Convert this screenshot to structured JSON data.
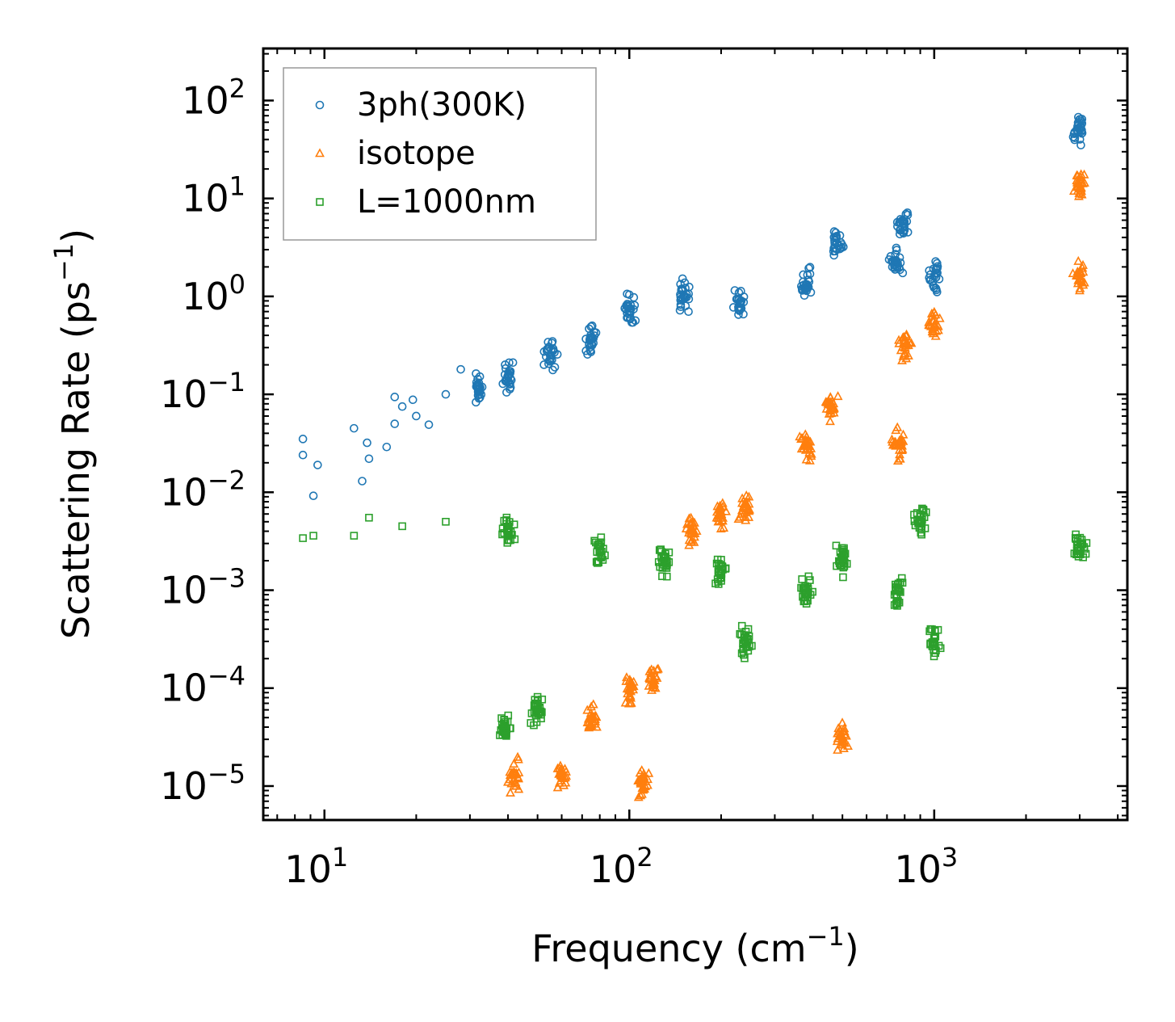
{
  "chart_data": {
    "type": "scatter",
    "title": "",
    "xlabel": "Frequency (cm",
    "xlabel_sup": "−1",
    "xlabel_close": ")",
    "ylabel": "Scattering Rate (ps",
    "ylabel_sup": "−1",
    "ylabel_close": ")",
    "xscale": "log",
    "yscale": "log",
    "xlim": [
      6.3,
      4300
    ],
    "ylim": [
      4.5e-06,
      340
    ],
    "legend_position": "top-left",
    "x_ticks": [
      {
        "value": 10,
        "base": "10",
        "exp": "1"
      },
      {
        "value": 100,
        "base": "10",
        "exp": "2"
      },
      {
        "value": 1000,
        "base": "10",
        "exp": "3"
      }
    ],
    "y_ticks": [
      {
        "value": 1e-05,
        "base": "10",
        "exp": "−5"
      },
      {
        "value": 0.0001,
        "base": "10",
        "exp": "−4"
      },
      {
        "value": 0.001,
        "base": "10",
        "exp": "−3"
      },
      {
        "value": 0.01,
        "base": "10",
        "exp": "−2"
      },
      {
        "value": 0.1,
        "base": "10",
        "exp": "−1"
      },
      {
        "value": 1,
        "base": "10",
        "exp": "0"
      },
      {
        "value": 10,
        "base": "10",
        "exp": "1"
      },
      {
        "value": 100,
        "base": "10",
        "exp": "2"
      }
    ],
    "series": [
      {
        "name": "3ph(300K)",
        "marker": "circle",
        "color": "#1f77b4",
        "clusters": [
          {
            "x": 8.5,
            "y": 0.035
          },
          {
            "x": 8.5,
            "y": 0.024
          },
          {
            "x": 9.2,
            "y": 0.0092
          },
          {
            "x": 9.5,
            "y": 0.019
          },
          {
            "x": 12.5,
            "y": 0.045
          },
          {
            "x": 13.3,
            "y": 0.013
          },
          {
            "x": 13.8,
            "y": 0.032
          },
          {
            "x": 14,
            "y": 0.022
          },
          {
            "x": 16,
            "y": 0.029
          },
          {
            "x": 17,
            "y": 0.094
          },
          {
            "x": 17,
            "y": 0.05
          },
          {
            "x": 18,
            "y": 0.075
          },
          {
            "x": 19.5,
            "y": 0.088
          },
          {
            "x": 20,
            "y": 0.06
          },
          {
            "x": 22,
            "y": 0.049
          },
          {
            "x": 25,
            "y": 0.1
          },
          {
            "x": 28,
            "y": 0.18
          },
          {
            "x": 32,
            "y": 0.12
          },
          {
            "x": 40,
            "y": 0.15
          },
          {
            "x": 55,
            "y": 0.25
          },
          {
            "x": 75,
            "y": 0.38
          },
          {
            "x": 100,
            "y": 0.7
          },
          {
            "x": 150,
            "y": 0.95
          },
          {
            "x": 230,
            "y": 0.85
          },
          {
            "x": 380,
            "y": 1.3
          },
          {
            "x": 480,
            "y": 3.5
          },
          {
            "x": 750,
            "y": 2.2
          },
          {
            "x": 790,
            "y": 5.5
          },
          {
            "x": 1000,
            "y": 1.6
          },
          {
            "x": 3000,
            "y": 50
          }
        ]
      },
      {
        "name": "isotope",
        "marker": "triangle",
        "color": "#ff7f0e",
        "clusters": [
          {
            "x": 42,
            "y": 1.3e-05
          },
          {
            "x": 60,
            "y": 1.3e-05
          },
          {
            "x": 75,
            "y": 5e-05
          },
          {
            "x": 100,
            "y": 0.0001
          },
          {
            "x": 110,
            "y": 1.1e-05
          },
          {
            "x": 120,
            "y": 0.00012
          },
          {
            "x": 160,
            "y": 0.004
          },
          {
            "x": 200,
            "y": 0.006
          },
          {
            "x": 240,
            "y": 0.007
          },
          {
            "x": 380,
            "y": 0.03
          },
          {
            "x": 460,
            "y": 0.08
          },
          {
            "x": 500,
            "y": 3e-05
          },
          {
            "x": 760,
            "y": 0.03
          },
          {
            "x": 800,
            "y": 0.3
          },
          {
            "x": 1000,
            "y": 0.5
          },
          {
            "x": 3000,
            "y": 1.5
          },
          {
            "x": 3000,
            "y": 14
          }
        ]
      },
      {
        "name": "L=1000nm",
        "marker": "square",
        "color": "#2ca02c",
        "clusters": [
          {
            "x": 8.5,
            "y": 0.0034
          },
          {
            "x": 9.2,
            "y": 0.0036
          },
          {
            "x": 12.5,
            "y": 0.0036
          },
          {
            "x": 14,
            "y": 0.0055
          },
          {
            "x": 18,
            "y": 0.0045
          },
          {
            "x": 25,
            "y": 0.005
          },
          {
            "x": 40,
            "y": 0.004
          },
          {
            "x": 39,
            "y": 4e-05
          },
          {
            "x": 50,
            "y": 6e-05
          },
          {
            "x": 80,
            "y": 0.0025
          },
          {
            "x": 130,
            "y": 0.002
          },
          {
            "x": 200,
            "y": 0.0015
          },
          {
            "x": 240,
            "y": 0.0003
          },
          {
            "x": 380,
            "y": 0.001
          },
          {
            "x": 500,
            "y": 0.002
          },
          {
            "x": 760,
            "y": 0.001
          },
          {
            "x": 900,
            "y": 0.005
          },
          {
            "x": 1000,
            "y": 0.0003
          },
          {
            "x": 3000,
            "y": 0.0025
          }
        ]
      }
    ]
  }
}
